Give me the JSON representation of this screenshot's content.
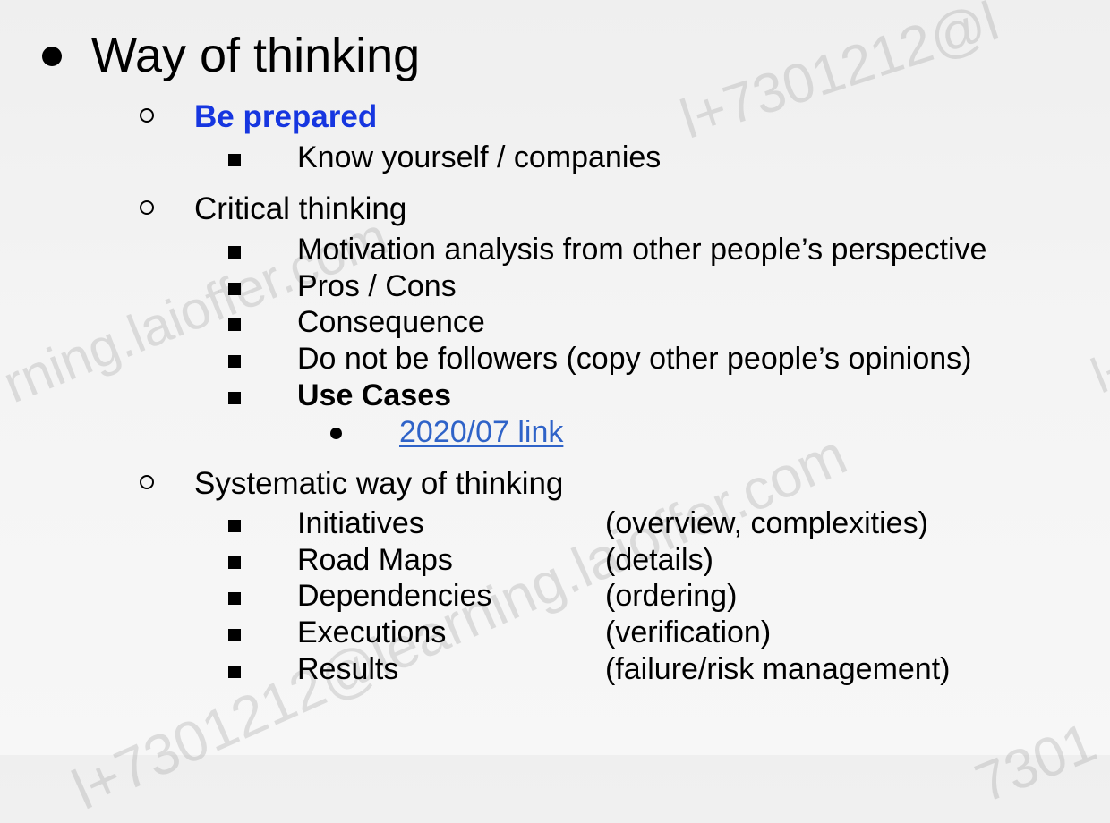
{
  "watermarks": [
    "l+7301212@l",
    "rning.laioffer.com",
    "l+7301212@learning.laioffer.com",
    "l+",
    "7301"
  ],
  "outline": {
    "title": "Way of thinking",
    "sections": [
      {
        "label": "Be prepared",
        "items": [
          "Know yourself / companies"
        ]
      },
      {
        "label": "Critical thinking",
        "items": [
          "Motivation analysis from other people’s perspective",
          "Pros / Cons",
          "Consequence",
          "Do not be followers (copy other people’s opinions)",
          "Use Cases"
        ],
        "sub_link": "2020/07 link"
      },
      {
        "label": "Systematic way of thinking",
        "rows": [
          {
            "name": "Initiatives",
            "note": "(overview, complexities)"
          },
          {
            "name": "Road Maps",
            "note": "(details)"
          },
          {
            "name": "Dependencies",
            "note": "(ordering)"
          },
          {
            "name": "Executions",
            "note": "(verification)"
          },
          {
            "name": "Results",
            "note": "(failure/risk management)"
          }
        ]
      }
    ]
  },
  "colors": {
    "heading_accent": "#1636e0",
    "link": "#2f63c8"
  }
}
